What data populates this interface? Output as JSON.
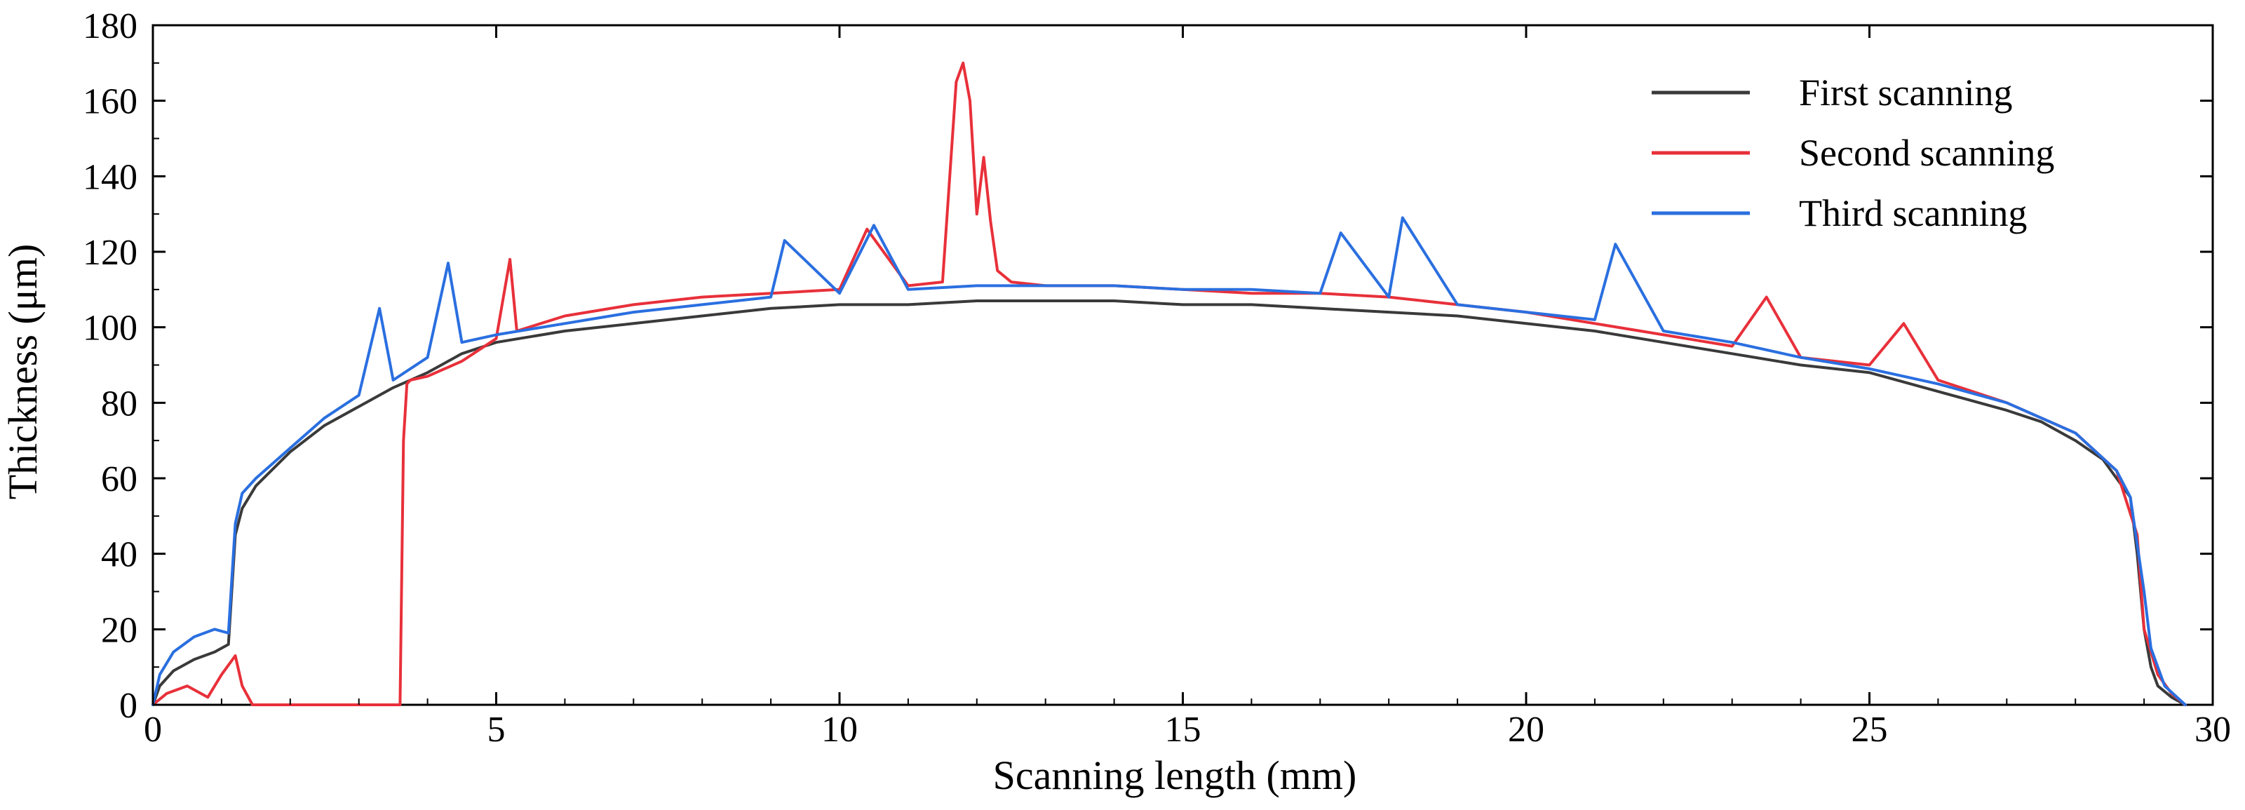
{
  "chart_data": {
    "type": "line",
    "title": "",
    "xlabel": "Scanning length (mm)",
    "ylabel": "Thickness (μm)",
    "xlim": [
      0,
      30
    ],
    "ylim": [
      0,
      180
    ],
    "xticks": [
      0,
      5,
      10,
      15,
      20,
      25,
      30
    ],
    "xtick_labels": [
      "0",
      "5",
      "10",
      "15",
      "20",
      "25",
      "30"
    ],
    "yticks": [
      0,
      20,
      40,
      60,
      80,
      100,
      120,
      140,
      160,
      180
    ],
    "ytick_labels": [
      "0",
      "20",
      "40",
      "60",
      "80",
      "100",
      "120",
      "140",
      "160",
      "180"
    ],
    "grid": false,
    "legend_position": "top-right",
    "series": [
      {
        "name": "First scanning",
        "color": "#3a3a3a",
        "x": [
          0.0,
          0.1,
          0.3,
          0.6,
          0.9,
          1.1,
          1.2,
          1.3,
          1.5,
          2.0,
          2.5,
          3.0,
          3.5,
          4.0,
          4.5,
          5.0,
          6.0,
          7.0,
          8.0,
          9.0,
          10.0,
          11.0,
          12.0,
          13.0,
          14.0,
          15.0,
          16.0,
          17.0,
          18.0,
          19.0,
          20.0,
          21.0,
          22.0,
          23.0,
          24.0,
          25.0,
          26.0,
          27.0,
          27.5,
          28.0,
          28.4,
          28.6,
          28.8,
          28.9,
          29.0,
          29.1,
          29.2,
          29.4,
          29.6
        ],
        "y": [
          0,
          5,
          9,
          12,
          14,
          16,
          45,
          52,
          58,
          67,
          74,
          79,
          84,
          88,
          93,
          96,
          99,
          101,
          103,
          105,
          106,
          106,
          107,
          107,
          107,
          106,
          106,
          105,
          104,
          103,
          101,
          99,
          96,
          93,
          90,
          88,
          83,
          78,
          75,
          70,
          65,
          60,
          55,
          40,
          20,
          10,
          5,
          2,
          0
        ]
      },
      {
        "name": "Second scanning",
        "color": "#e8303a",
        "x": [
          0.0,
          0.2,
          0.5,
          0.8,
          1.0,
          1.2,
          1.3,
          1.45,
          1.5,
          2.0,
          3.0,
          3.6,
          3.65,
          3.7,
          3.75,
          4.0,
          4.5,
          5.0,
          5.2,
          5.3,
          6.0,
          7.0,
          8.0,
          9.0,
          10.0,
          10.4,
          11.0,
          11.5,
          11.7,
          11.8,
          11.9,
          12.0,
          12.1,
          12.2,
          12.3,
          12.5,
          13.0,
          14.0,
          15.0,
          16.0,
          17.0,
          18.0,
          19.0,
          20.0,
          21.0,
          22.0,
          23.0,
          23.5,
          24.0,
          25.0,
          25.5,
          26.0,
          27.0,
          28.0,
          28.6,
          28.9,
          29.0,
          29.2,
          29.4,
          29.6
        ],
        "y": [
          0,
          3,
          5,
          2,
          8,
          13,
          5,
          0,
          0,
          0,
          0,
          0,
          70,
          85,
          86,
          87,
          91,
          97,
          118,
          99,
          103,
          106,
          108,
          109,
          110,
          126,
          111,
          112,
          165,
          170,
          160,
          130,
          145,
          128,
          115,
          112,
          111,
          111,
          110,
          109,
          109,
          108,
          106,
          104,
          101,
          98,
          95,
          108,
          92,
          90,
          101,
          86,
          80,
          72,
          62,
          45,
          20,
          8,
          3,
          0
        ]
      },
      {
        "name": "Third scanning",
        "color": "#2a6fe0",
        "x": [
          0.0,
          0.1,
          0.3,
          0.6,
          0.9,
          1.1,
          1.2,
          1.3,
          1.5,
          2.0,
          2.5,
          3.0,
          3.3,
          3.5,
          4.0,
          4.3,
          4.5,
          5.0,
          6.0,
          7.0,
          8.0,
          9.0,
          9.2,
          10.0,
          10.5,
          11.0,
          12.0,
          13.0,
          14.0,
          15.0,
          16.0,
          17.0,
          17.3,
          18.0,
          18.2,
          19.0,
          20.0,
          21.0,
          21.3,
          22.0,
          23.0,
          24.0,
          25.0,
          26.0,
          27.0,
          28.0,
          28.6,
          28.8,
          29.0,
          29.1,
          29.3,
          29.6
        ],
        "y": [
          0,
          8,
          14,
          18,
          20,
          19,
          48,
          56,
          60,
          68,
          76,
          82,
          105,
          86,
          92,
          117,
          96,
          98,
          101,
          104,
          106,
          108,
          123,
          109,
          127,
          110,
          111,
          111,
          111,
          110,
          110,
          109,
          125,
          108,
          129,
          106,
          104,
          102,
          122,
          99,
          96,
          92,
          89,
          85,
          80,
          72,
          62,
          55,
          30,
          15,
          5,
          0
        ]
      }
    ]
  }
}
